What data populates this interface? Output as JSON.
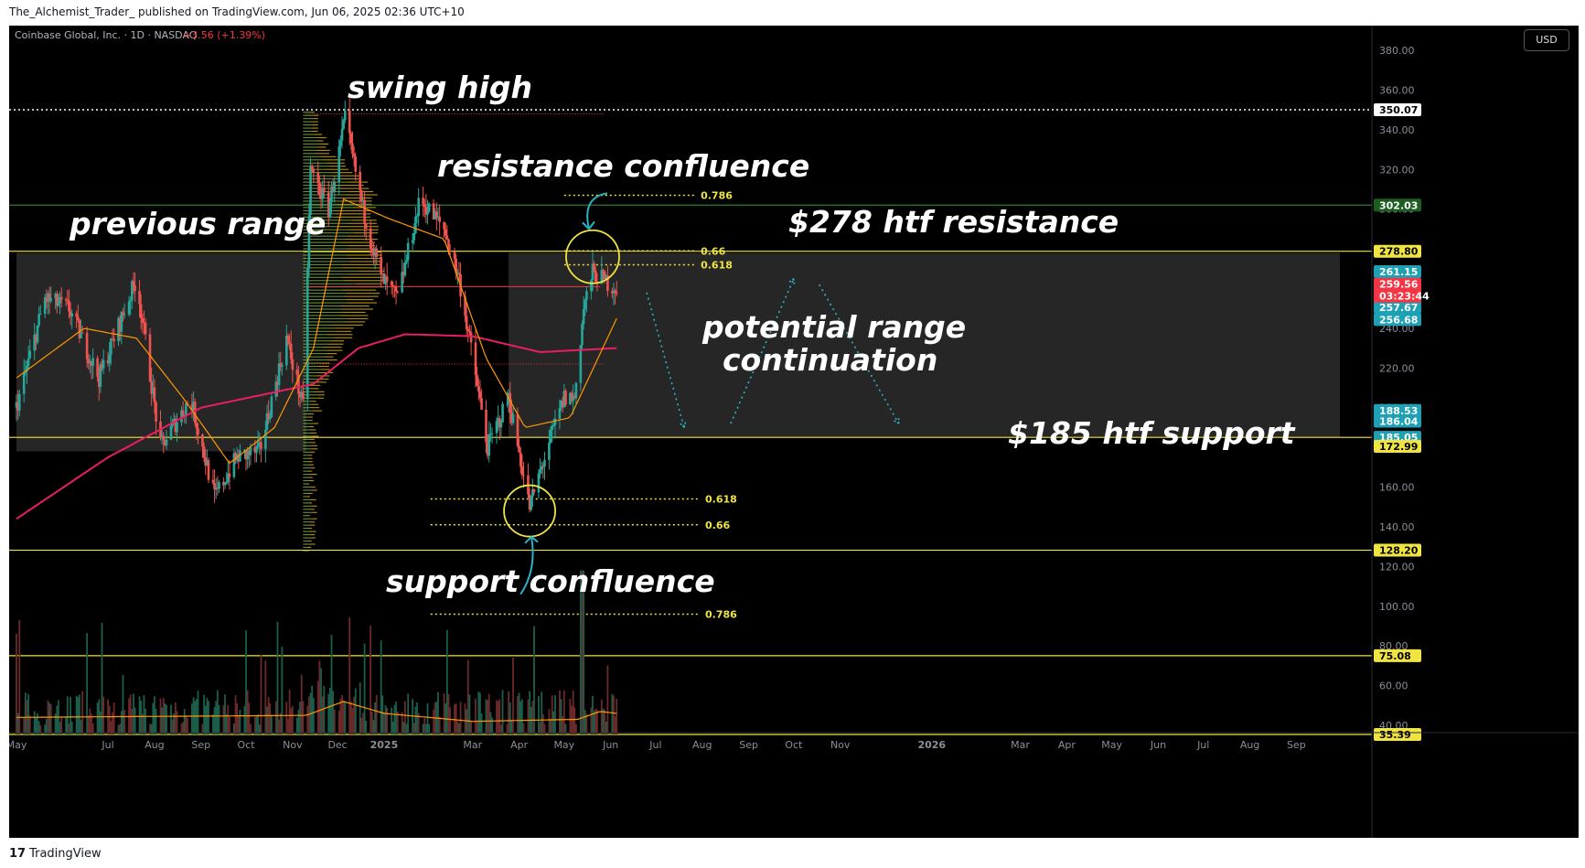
{
  "header": {
    "published": "The_Alchemist_Trader_ published on TradingView.com, Jun 06, 2025 02:36 UTC+10"
  },
  "footer": {
    "brand": "TradingView",
    "brand_icon": "tradingview-logo-icon"
  },
  "currency_button": "USD",
  "legend": {
    "symbol": "Coinbase Global, Inc. · 1D · NASDAQ",
    "change": "+3.56 (+1.39%)",
    "change_color": "#f23645"
  },
  "colors": {
    "up": "#26a69a",
    "down": "#ef5350",
    "ma_slow": "#e91e63",
    "ma_fast": "#ff9800",
    "level": "#f0e442",
    "dotted": "#28b4c8"
  },
  "chart_data": {
    "type": "candlestick",
    "symbol": "COIN",
    "timeframe": "1D",
    "ylim": [
      32,
      382
    ],
    "y_ticks": [
      "380.00",
      "360.00",
      "340.00",
      "320.00",
      "300.00",
      "280.00",
      "260.00",
      "240.00",
      "220.00",
      "200.00",
      "180.00",
      "160.00",
      "140.00",
      "120.00",
      "100.00",
      "80.00",
      "60.00",
      "40.00"
    ],
    "x_ticks": [
      "May",
      "Jul",
      "Aug",
      "Sep",
      "Oct",
      "Nov",
      "Dec",
      "2025",
      "Mar",
      "Apr",
      "May",
      "Jun",
      "Jul",
      "Aug",
      "Sep",
      "Oct",
      "Nov",
      "2026",
      "Mar",
      "Apr",
      "May",
      "Jun",
      "Jul",
      "Aug",
      "Sep"
    ],
    "x_tick_bold": [
      "2025",
      "2026"
    ],
    "price_path": [
      {
        "date": "2024-05-01",
        "price": 200
      },
      {
        "date": "2024-05-20",
        "price": 255
      },
      {
        "date": "2024-06-05",
        "price": 250
      },
      {
        "date": "2024-06-25",
        "price": 215
      },
      {
        "date": "2024-07-20",
        "price": 265
      },
      {
        "date": "2024-08-05",
        "price": 180
      },
      {
        "date": "2024-08-25",
        "price": 205
      },
      {
        "date": "2024-09-10",
        "price": 155
      },
      {
        "date": "2024-09-25",
        "price": 175
      },
      {
        "date": "2024-10-10",
        "price": 178
      },
      {
        "date": "2024-10-28",
        "price": 235
      },
      {
        "date": "2024-11-08",
        "price": 200
      },
      {
        "date": "2024-11-13",
        "price": 320
      },
      {
        "date": "2024-11-25",
        "price": 300
      },
      {
        "date": "2024-12-06",
        "price": 345
      },
      {
        "date": "2024-12-18",
        "price": 300
      },
      {
        "date": "2024-12-30",
        "price": 265
      },
      {
        "date": "2025-01-10",
        "price": 255
      },
      {
        "date": "2025-01-25",
        "price": 305
      },
      {
        "date": "2025-02-10",
        "price": 290
      },
      {
        "date": "2025-02-20",
        "price": 265
      },
      {
        "date": "2025-03-01",
        "price": 225
      },
      {
        "date": "2025-03-11",
        "price": 180
      },
      {
        "date": "2025-03-25",
        "price": 205
      },
      {
        "date": "2025-04-08",
        "price": 150
      },
      {
        "date": "2025-04-20",
        "price": 180
      },
      {
        "date": "2025-05-01",
        "price": 205
      },
      {
        "date": "2025-05-08",
        "price": 205
      },
      {
        "date": "2025-05-14",
        "price": 250
      },
      {
        "date": "2025-05-20",
        "price": 268
      },
      {
        "date": "2025-06-05",
        "price": 260
      }
    ],
    "ma_slow_path": [
      {
        "date": "2024-05-01",
        "price": 144
      },
      {
        "date": "2024-07-01",
        "price": 175
      },
      {
        "date": "2024-09-01",
        "price": 200
      },
      {
        "date": "2024-10-15",
        "price": 207
      },
      {
        "date": "2024-11-15",
        "price": 212
      },
      {
        "date": "2024-12-15",
        "price": 230
      },
      {
        "date": "2025-01-15",
        "price": 237
      },
      {
        "date": "2025-03-01",
        "price": 236
      },
      {
        "date": "2025-04-15",
        "price": 228
      },
      {
        "date": "2025-06-05",
        "price": 230
      }
    ],
    "ma_fast_path": [
      {
        "date": "2024-05-01",
        "price": 215
      },
      {
        "date": "2024-06-15",
        "price": 240
      },
      {
        "date": "2024-07-20",
        "price": 235
      },
      {
        "date": "2024-08-20",
        "price": 205
      },
      {
        "date": "2024-09-20",
        "price": 172
      },
      {
        "date": "2024-10-20",
        "price": 190
      },
      {
        "date": "2024-11-15",
        "price": 230
      },
      {
        "date": "2024-12-05",
        "price": 305
      },
      {
        "date": "2025-01-05",
        "price": 295
      },
      {
        "date": "2025-02-10",
        "price": 285
      },
      {
        "date": "2025-03-10",
        "price": 225
      },
      {
        "date": "2025-04-05",
        "price": 190
      },
      {
        "date": "2025-05-05",
        "price": 195
      },
      {
        "date": "2025-06-05",
        "price": 245
      }
    ],
    "volume_ma_path": [
      {
        "date": "2024-05-01",
        "price": 44
      },
      {
        "date": "2024-11-10",
        "price": 45
      },
      {
        "date": "2024-12-05",
        "price": 52
      },
      {
        "date": "2025-01-01",
        "price": 46
      },
      {
        "date": "2025-03-01",
        "price": 42
      },
      {
        "date": "2025-05-10",
        "price": 43
      },
      {
        "date": "2025-05-25",
        "price": 47
      },
      {
        "date": "2025-06-05",
        "price": 46
      }
    ],
    "horizontal_levels": [
      {
        "price": 350.07,
        "label": "350.07",
        "style": "dotted",
        "color": "#ffffff",
        "tag_bg": "#ffffff",
        "tag_fg": "#000000"
      },
      {
        "price": 302.03,
        "label": "302.03",
        "style": "solid",
        "color": "#2e7d32",
        "tag_bg": "#1b5e20",
        "tag_fg": "#ffffff"
      },
      {
        "price": 278.8,
        "label": "278.80",
        "style": "solid",
        "color": "#f0e442",
        "tag_bg": "#f0e442",
        "tag_fg": "#000000"
      },
      {
        "price": 185.05,
        "label": "185.05",
        "style": "solid",
        "color": "#f0e442",
        "tag_bg": "#1fa1b5",
        "tag_fg": "#ffffff"
      },
      {
        "price": 128.2,
        "label": "128.20",
        "style": "solid",
        "color": "#f0e442",
        "tag_bg": "#f0e442",
        "tag_fg": "#000000"
      },
      {
        "price": 75.08,
        "label": "75.08",
        "style": "solid",
        "color": "#f0e442",
        "tag_bg": "#f0e442",
        "tag_fg": "#000000"
      },
      {
        "price": 35.39,
        "label": "35.39",
        "style": "solid",
        "color": "#f0e442",
        "tag_bg": "#f0e442",
        "tag_fg": "#000000"
      }
    ],
    "price_tags": [
      {
        "price": 261.15,
        "label": "261.15",
        "bg": "#1fa1b5",
        "fg": "#ffffff"
      },
      {
        "price": 259.56,
        "label": "259.56",
        "bg": "#f23645",
        "fg": "#ffffff"
      },
      {
        "price": 257.67,
        "label": "257.67",
        "bg": "#1fa1b5",
        "fg": "#ffffff"
      },
      {
        "price": 256.68,
        "label": "256.68",
        "bg": "#1fa1b5",
        "fg": "#ffffff"
      },
      {
        "price": 188.53,
        "label": "188.53",
        "bg": "#1fa1b5",
        "fg": "#ffffff"
      },
      {
        "price": 186.04,
        "label": "186.04",
        "bg": "#1fa1b5",
        "fg": "#ffffff"
      },
      {
        "price": 172.99,
        "label": "172.99",
        "bg": "#f0e442",
        "fg": "#000000"
      }
    ],
    "countdown": "03:23:44",
    "fib_top": [
      {
        "level": "0.786",
        "price": 307
      },
      {
        "level": "0.66",
        "price": 279
      },
      {
        "level": "0.618",
        "price": 272
      }
    ],
    "fib_bottom": [
      {
        "level": "0.618",
        "price": 154
      },
      {
        "level": "0.66",
        "price": 141
      },
      {
        "level": "0.786",
        "price": 96
      }
    ],
    "boxes": [
      {
        "name": "previous-range",
        "from": "2024-05-01",
        "to": "2024-11-10",
        "top": 278,
        "bottom": 178
      },
      {
        "name": "current-range",
        "from": "2025-03-25",
        "to": "2026-09-30",
        "top": 278,
        "bottom": 185
      }
    ],
    "projection": [
      {
        "date": "2025-06-25",
        "price": 258
      },
      {
        "date": "2025-07-20",
        "price": 190
      },
      {
        "date": "2025-08-20",
        "price": 192
      },
      {
        "date": "2025-10-01",
        "price": 265
      },
      {
        "date": "2025-10-18",
        "price": 262
      },
      {
        "date": "2025-12-10",
        "price": 192
      }
    ],
    "annotations": {
      "swing_high": "swing high",
      "resistance_confluence": "resistance confluence",
      "previous_range": "previous range",
      "htf_resistance": "$278 htf resistance",
      "potential_range_line1": "potential range",
      "potential_range_line2": "continuation",
      "htf_support": "$185 htf support",
      "support_confluence": "support confluence"
    }
  }
}
